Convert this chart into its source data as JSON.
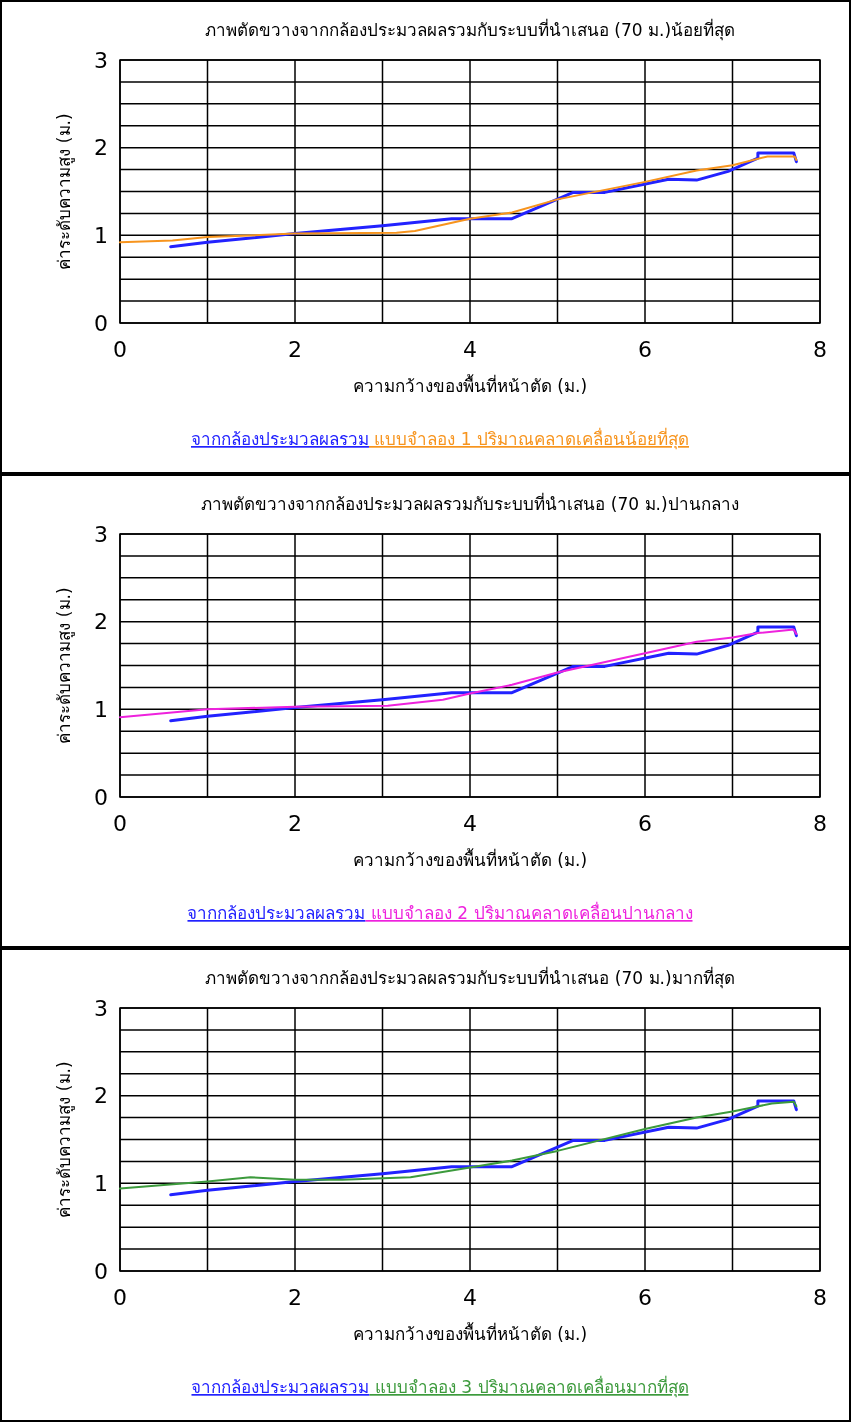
{
  "chart_data": [
    {
      "type": "line",
      "title": "ภาพตัดขวางจากกล้องประมวลผลรวมกับระบบที่นำเสนอ (70 ม.)น้อยที่สุด",
      "xlabel": "ความกว้างของพื้นที่หน้าตัด (ม.)",
      "ylabel": "ค่าระดับความสูง (ม.)",
      "xlim": [
        0,
        8
      ],
      "ylim": [
        0,
        3
      ],
      "xticks": [
        0,
        {
          "value": 1,
          "label": null
        },
        2,
        {
          "value": 3,
          "label": null
        },
        4,
        {
          "value": 5,
          "label": null
        },
        6,
        {
          "value": 7,
          "label": null
        },
        8
      ],
      "yticks": [
        0,
        {
          "value": 0.25,
          "label": null
        },
        {
          "value": 0.5,
          "label": null
        },
        {
          "value": 0.75,
          "label": null
        },
        1,
        {
          "value": 1.25,
          "label": null
        },
        {
          "value": 1.5,
          "label": null
        },
        {
          "value": 1.75,
          "label": null
        },
        2,
        {
          "value": 2.25,
          "label": null
        },
        {
          "value": 2.5,
          "label": null
        },
        {
          "value": 2.75,
          "label": null
        },
        3
      ],
      "grid": true,
      "legend": "bottom",
      "series": [
        {
          "name": "จากกล้องประมวลผลรวม",
          "color": "#2222ff",
          "x": [
            0.58,
            1,
            2,
            3,
            3.79,
            4.48,
            5.18,
            5.54,
            6.27,
            6.59,
            6.95,
            7.29,
            7.29,
            7.7,
            7.73
          ],
          "values": [
            0.87,
            0.92,
            1.02,
            1.11,
            1.19,
            1.19,
            1.49,
            1.49,
            1.64,
            1.63,
            1.73,
            1.88,
            1.94,
            1.94,
            1.84
          ]
        },
        {
          "name": "แบบจำลอง 1 ปริมาณคลาดเคลื่อนน้อยที่สุด",
          "color": "#f7941d",
          "x": [
            0,
            0.6,
            1,
            2,
            3.16,
            3.37,
            4,
            4.48,
            5,
            6,
            6.59,
            7,
            7.4,
            7.71,
            7.73
          ],
          "values": [
            0.92,
            0.94,
            0.98,
            1.02,
            1.03,
            1.05,
            1.19,
            1.26,
            1.41,
            1.61,
            1.74,
            1.8,
            1.9,
            1.9,
            1.86
          ]
        }
      ]
    },
    {
      "type": "line",
      "title": "ภาพตัดขวางจากกล้องประมวลผลรวมกับระบบที่นำเสนอ (70 ม.)ปานกลาง",
      "xlabel": "ความกว้างของพื้นที่หน้าตัด (ม.)",
      "ylabel": "ค่าระดับความสูง (ม.)",
      "xlim": [
        0,
        8
      ],
      "ylim": [
        0,
        3
      ],
      "xticks": [
        0,
        {
          "value": 1,
          "label": null
        },
        2,
        {
          "value": 3,
          "label": null
        },
        4,
        {
          "value": 5,
          "label": null
        },
        6,
        {
          "value": 7,
          "label": null
        },
        8
      ],
      "yticks": [
        0,
        {
          "value": 0.25,
          "label": null
        },
        {
          "value": 0.5,
          "label": null
        },
        {
          "value": 0.75,
          "label": null
        },
        1,
        {
          "value": 1.25,
          "label": null
        },
        {
          "value": 1.5,
          "label": null
        },
        {
          "value": 1.75,
          "label": null
        },
        2,
        {
          "value": 2.25,
          "label": null
        },
        {
          "value": 2.5,
          "label": null
        },
        {
          "value": 2.75,
          "label": null
        },
        3
      ],
      "grid": true,
      "legend": "bottom",
      "series": [
        {
          "name": "จากกล้องประมวลผลรวม",
          "color": "#2222ff",
          "x": [
            0.58,
            1,
            2,
            3,
            3.79,
            4.48,
            5.18,
            5.54,
            6.27,
            6.59,
            6.95,
            7.29,
            7.29,
            7.7,
            7.73
          ],
          "values": [
            0.87,
            0.92,
            1.02,
            1.11,
            1.19,
            1.19,
            1.49,
            1.49,
            1.64,
            1.63,
            1.73,
            1.88,
            1.94,
            1.94,
            1.84
          ]
        },
        {
          "name": "แบบจำลอง 2 ปริมาณคลาดเคลื่อนปานกลาง",
          "color": "#ee22dd",
          "x": [
            0,
            1,
            2,
            3.06,
            3.69,
            4,
            4.48,
            5,
            6,
            6.59,
            7,
            7.29,
            7.7,
            7.73
          ],
          "values": [
            0.91,
            1,
            1.03,
            1.04,
            1.11,
            1.18,
            1.28,
            1.42,
            1.64,
            1.77,
            1.82,
            1.87,
            1.91,
            1.86
          ]
        }
      ]
    },
    {
      "type": "line",
      "title": "ภาพตัดขวางจากกล้องประมวลผลรวมกับระบบที่นำเสนอ (70 ม.)มากที่สุด",
      "xlabel": "ความกว้างของพื้นที่หน้าตัด (ม.)",
      "ylabel": "ค่าระดับความสูง (ม.)",
      "xlim": [
        0,
        8
      ],
      "ylim": [
        0,
        3
      ],
      "xticks": [
        0,
        {
          "value": 1,
          "label": null
        },
        2,
        {
          "value": 3,
          "label": null
        },
        4,
        {
          "value": 5,
          "label": null
        },
        6,
        {
          "value": 7,
          "label": null
        },
        8
      ],
      "yticks": [
        0,
        {
          "value": 0.25,
          "label": null
        },
        {
          "value": 0.5,
          "label": null
        },
        {
          "value": 0.75,
          "label": null
        },
        1,
        {
          "value": 1.25,
          "label": null
        },
        {
          "value": 1.5,
          "label": null
        },
        {
          "value": 1.75,
          "label": null
        },
        2,
        {
          "value": 2.25,
          "label": null
        },
        {
          "value": 2.5,
          "label": null
        },
        {
          "value": 2.75,
          "label": null
        },
        3
      ],
      "grid": true,
      "legend": "bottom",
      "series": [
        {
          "name": "จากกล้องประมวลผลรวม",
          "color": "#2222ff",
          "x": [
            0.58,
            1,
            2,
            3,
            3.79,
            4.48,
            5.18,
            5.54,
            6.27,
            6.59,
            6.95,
            7.29,
            7.29,
            7.7,
            7.73
          ],
          "values": [
            0.87,
            0.92,
            1.02,
            1.11,
            1.19,
            1.19,
            1.49,
            1.49,
            1.64,
            1.63,
            1.73,
            1.88,
            1.94,
            1.94,
            1.84
          ]
        },
        {
          "name": "แบบจำลอง 3 ปริมาณคลาดเคลื่อนมากที่สุด",
          "color": "#3c9a3c",
          "x": [
            0,
            1,
            1.49,
            2,
            2.54,
            3.32,
            4,
            4.48,
            5,
            6,
            6.59,
            7,
            7.45,
            7.7,
            7.73
          ],
          "values": [
            0.94,
            1.02,
            1.07,
            1.04,
            1.04,
            1.07,
            1.18,
            1.26,
            1.37,
            1.62,
            1.75,
            1.82,
            1.91,
            1.93,
            1.88
          ]
        }
      ]
    }
  ]
}
